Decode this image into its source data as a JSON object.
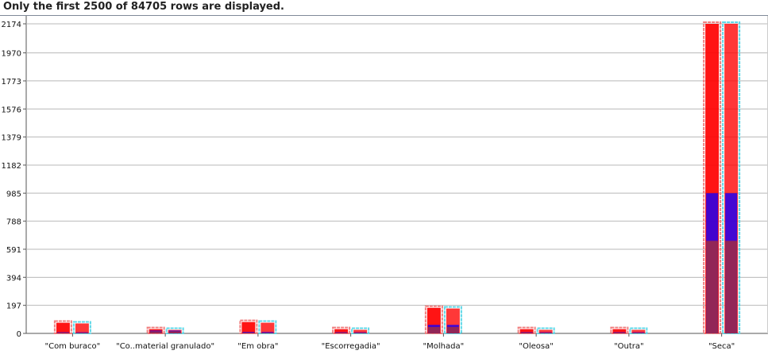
{
  "notice": "Only the first 2500 of 84705 rows are displayed.",
  "chart_data": {
    "type": "bar",
    "title": "",
    "xlabel": "",
    "ylabel": "",
    "categories": [
      "\"Com buraco\"",
      "\"Co..material granulado\"",
      "\"Em obra\"",
      "\"Escorregadia\"",
      "\"Molhada\"",
      "\"Oleosa\"",
      "\"Outra\"",
      "\"Seca\""
    ],
    "y_ticks": [
      0,
      197,
      394,
      591,
      788,
      985,
      1182,
      1379,
      1576,
      1773,
      1970,
      2174
    ],
    "ylim": [
      0,
      2174
    ],
    "grid": true,
    "bars_per_category": 2,
    "series": [
      {
        "values": [
          75,
          30,
          80,
          30,
          180,
          30,
          30,
          2174
        ],
        "color": "#ff0000"
      },
      {
        "values": [
          70,
          25,
          75,
          25,
          175,
          25,
          25,
          2174
        ],
        "color": "#ff0000"
      }
    ],
    "inner_segments": [
      {
        "values": [
          8,
          20,
          10,
          8,
          60,
          8,
          8,
          985
        ],
        "color": "#2200ee"
      },
      {
        "values": [
          5,
          15,
          5,
          5,
          45,
          5,
          5,
          650
        ],
        "color": "#9b2a4a"
      }
    ],
    "highlight_color": "#5fd8e8"
  }
}
